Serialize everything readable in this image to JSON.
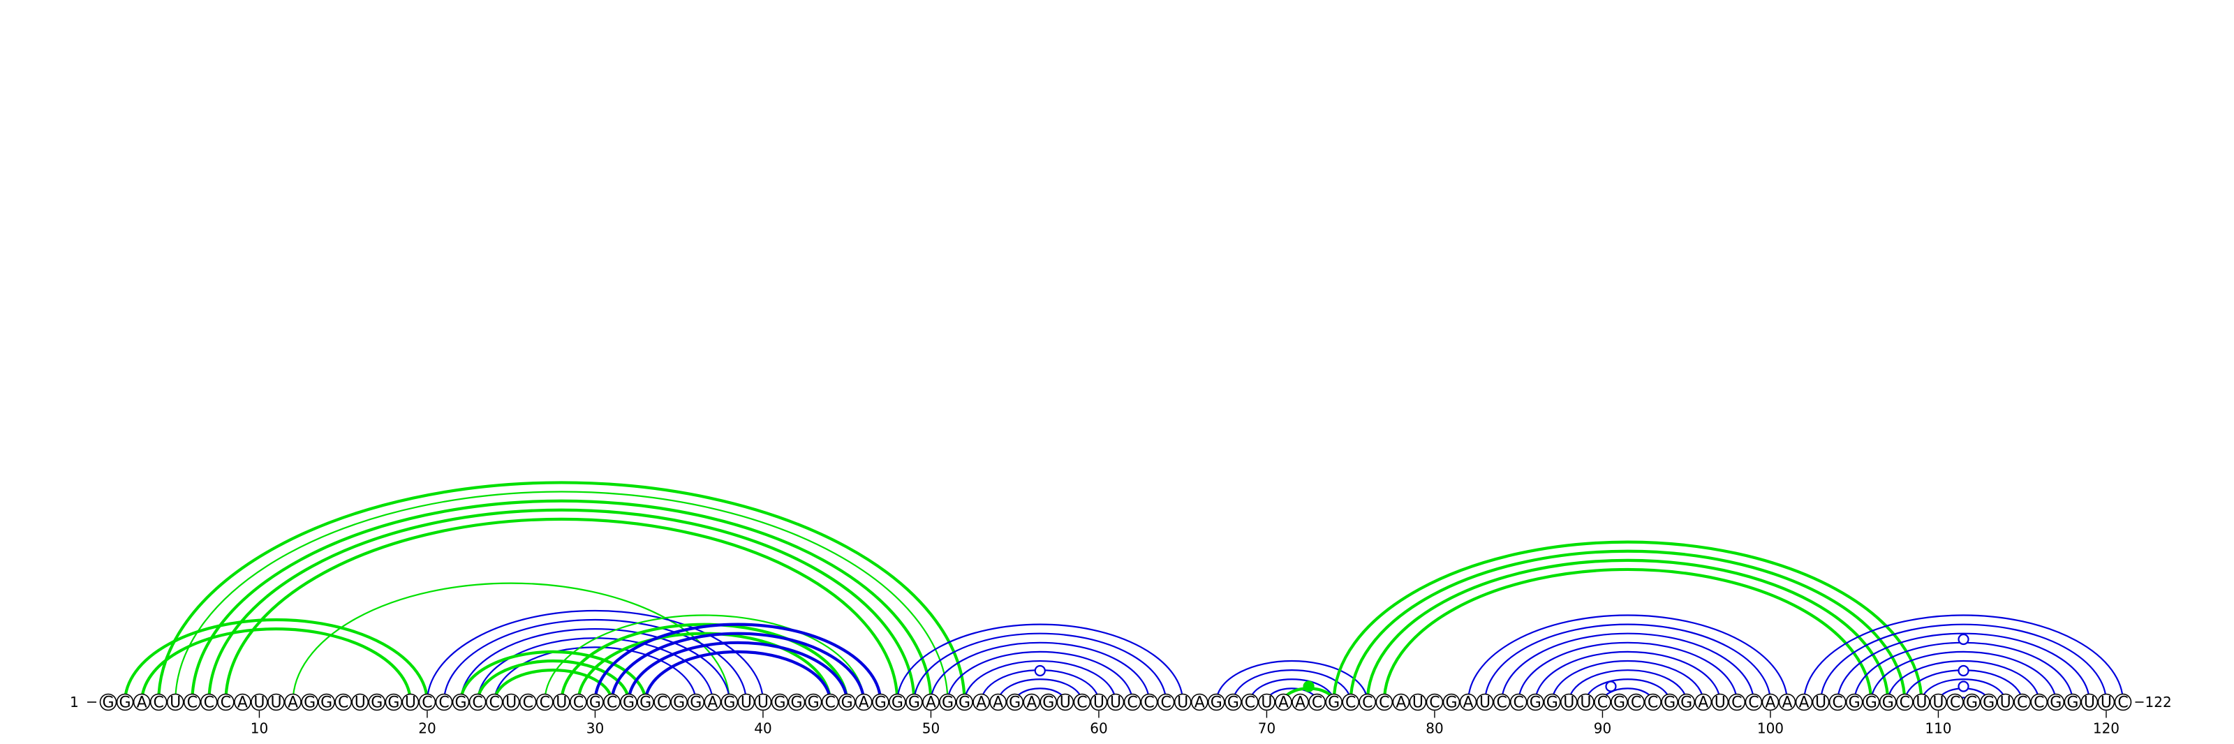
{
  "sequence": "GGACUCCCAUUAGGCUGGUCCGCCUCCUCGCGGCGGAGUUGGGCGAGGGAGGAAGAGUCUUCCCUAGGCUAACGCCCAUCGAUCCGGUUCGCCGGAUCCAAAUCGGGCUUCGGUCCGGUUC",
  "start_label": "1",
  "end_label": "122",
  "tick_labels": [
    "10",
    "20",
    "30",
    "40",
    "50",
    "60",
    "70",
    "80",
    "90",
    "100",
    "110",
    "120"
  ],
  "colors": {
    "green": "#00e000",
    "blue": "#0000dd",
    "line": "#000000"
  },
  "pairs": [
    {
      "i": 2,
      "j": 20,
      "color": "green",
      "weight": "bold"
    },
    {
      "i": 3,
      "j": 19,
      "color": "green",
      "weight": "bold"
    },
    {
      "i": 4,
      "j": 52,
      "color": "green",
      "weight": "bold"
    },
    {
      "i": 5,
      "j": 51,
      "color": "green",
      "weight": "thin"
    },
    {
      "i": 6,
      "j": 50,
      "color": "green",
      "weight": "bold"
    },
    {
      "i": 7,
      "j": 49,
      "color": "green",
      "weight": "bold"
    },
    {
      "i": 8,
      "j": 48,
      "color": "green",
      "weight": "bold"
    },
    {
      "i": 12,
      "j": 38,
      "color": "green",
      "weight": "thin"
    },
    {
      "i": 20,
      "j": 40,
      "color": "blue",
      "weight": "thin"
    },
    {
      "i": 21,
      "j": 39,
      "color": "blue",
      "weight": "thin"
    },
    {
      "i": 22,
      "j": 38,
      "color": "blue",
      "weight": "thin"
    },
    {
      "i": 23,
      "j": 37,
      "color": "blue",
      "weight": "thin"
    },
    {
      "i": 24,
      "j": 36,
      "color": "blue",
      "weight": "thin"
    },
    {
      "i": 22,
      "j": 33,
      "color": "green",
      "weight": "bold"
    },
    {
      "i": 23,
      "j": 32,
      "color": "green",
      "weight": "bold"
    },
    {
      "i": 24,
      "j": 31,
      "color": "green",
      "weight": "bold"
    },
    {
      "i": 27,
      "j": 46,
      "color": "green",
      "weight": "thin"
    },
    {
      "i": 28,
      "j": 45,
      "color": "green",
      "weight": "bold"
    },
    {
      "i": 29,
      "j": 44,
      "color": "green",
      "weight": "bold"
    },
    {
      "i": 30,
      "j": 47,
      "color": "blue",
      "weight": "bold"
    },
    {
      "i": 31,
      "j": 46,
      "color": "blue",
      "weight": "bold"
    },
    {
      "i": 32,
      "j": 45,
      "color": "blue",
      "weight": "bold"
    },
    {
      "i": 33,
      "j": 44,
      "color": "blue",
      "weight": "bold"
    },
    {
      "i": 48,
      "j": 65,
      "color": "blue",
      "weight": "thin"
    },
    {
      "i": 49,
      "j": 64,
      "color": "blue",
      "weight": "thin"
    },
    {
      "i": 50,
      "j": 63,
      "color": "blue",
      "weight": "thin"
    },
    {
      "i": 51,
      "j": 62,
      "color": "blue",
      "weight": "thin"
    },
    {
      "i": 52,
      "j": 61,
      "color": "blue",
      "weight": "thin"
    },
    {
      "i": 53,
      "j": 60,
      "color": "blue",
      "weight": "thin"
    },
    {
      "i": 54,
      "j": 59,
      "color": "blue",
      "weight": "thin"
    },
    {
      "i": 55,
      "j": 58,
      "color": "blue",
      "weight": "thin"
    },
    {
      "i": 67,
      "j": 76,
      "color": "blue",
      "weight": "thin"
    },
    {
      "i": 68,
      "j": 75,
      "color": "blue",
      "weight": "thin"
    },
    {
      "i": 69,
      "j": 74,
      "color": "blue",
      "weight": "thin"
    },
    {
      "i": 70,
      "j": 73,
      "color": "blue",
      "weight": "thin"
    },
    {
      "i": 71,
      "j": 74,
      "color": "green",
      "weight": "bold"
    },
    {
      "i": 74,
      "j": 109,
      "color": "green",
      "weight": "bold"
    },
    {
      "i": 75,
      "j": 108,
      "color": "green",
      "weight": "bold"
    },
    {
      "i": 76,
      "j": 107,
      "color": "green",
      "weight": "bold"
    },
    {
      "i": 77,
      "j": 106,
      "color": "green",
      "weight": "bold"
    },
    {
      "i": 82,
      "j": 101,
      "color": "blue",
      "weight": "thin"
    },
    {
      "i": 83,
      "j": 100,
      "color": "blue",
      "weight": "thin"
    },
    {
      "i": 84,
      "j": 99,
      "color": "blue",
      "weight": "thin"
    },
    {
      "i": 85,
      "j": 98,
      "color": "blue",
      "weight": "thin"
    },
    {
      "i": 86,
      "j": 97,
      "color": "blue",
      "weight": "thin"
    },
    {
      "i": 87,
      "j": 96,
      "color": "blue",
      "weight": "thin"
    },
    {
      "i": 88,
      "j": 95,
      "color": "blue",
      "weight": "thin"
    },
    {
      "i": 89,
      "j": 94,
      "color": "blue",
      "weight": "thin"
    },
    {
      "i": 90,
      "j": 93,
      "color": "blue",
      "weight": "thin"
    },
    {
      "i": 102,
      "j": 121,
      "color": "blue",
      "weight": "thin"
    },
    {
      "i": 103,
      "j": 120,
      "color": "blue",
      "weight": "thin"
    },
    {
      "i": 104,
      "j": 119,
      "color": "blue",
      "weight": "thin"
    },
    {
      "i": 105,
      "j": 118,
      "color": "blue",
      "weight": "thin"
    },
    {
      "i": 106,
      "j": 117,
      "color": "blue",
      "weight": "thin"
    },
    {
      "i": 107,
      "j": 116,
      "color": "blue",
      "weight": "thin"
    },
    {
      "i": 108,
      "j": 115,
      "color": "blue",
      "weight": "thin"
    },
    {
      "i": 109,
      "j": 114,
      "color": "blue",
      "weight": "thin"
    },
    {
      "i": 110,
      "j": 113,
      "color": "blue",
      "weight": "thin"
    },
    {
      "i": 111,
      "j": 112,
      "color": "blue",
      "weight": "thin"
    }
  ],
  "markers": [
    {
      "pos": 56.5,
      "level": 0.09,
      "style": "open",
      "color": "blue"
    },
    {
      "pos": 72.5,
      "level": 0.045,
      "style": "filled",
      "color": "green"
    },
    {
      "pos": 90.5,
      "level": 0.045,
      "style": "open",
      "color": "blue"
    },
    {
      "pos": 111.5,
      "level": 0.045,
      "style": "open",
      "color": "blue"
    },
    {
      "pos": 111.5,
      "level": 0.09,
      "style": "open",
      "color": "blue"
    },
    {
      "pos": 111.5,
      "level": 0.18,
      "style": "open",
      "color": "blue"
    }
  ]
}
